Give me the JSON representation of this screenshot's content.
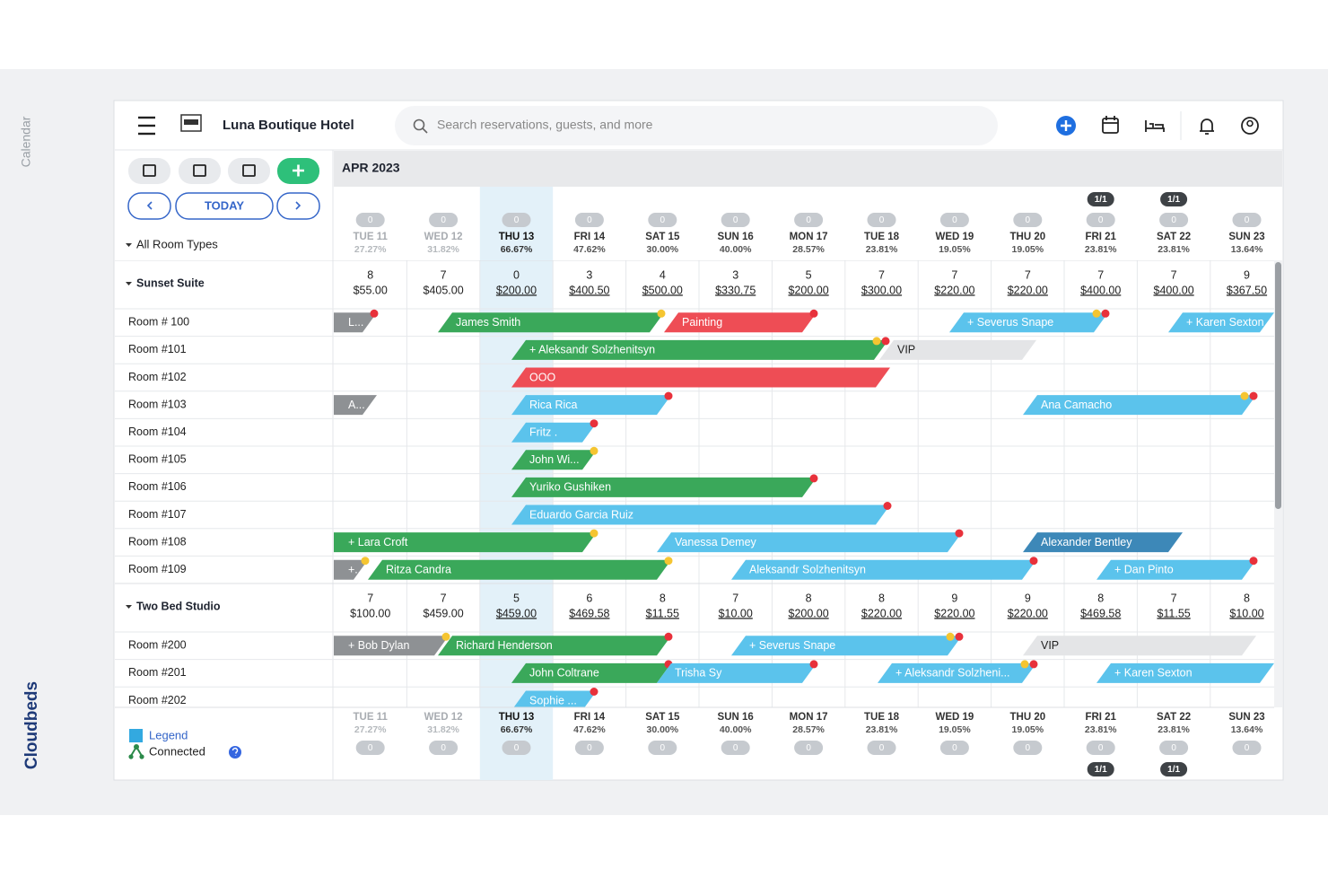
{
  "sidebar": {
    "label": "Calendar",
    "brand": "Cloudbeds"
  },
  "header": {
    "hotel": "Luna Boutique Hotel",
    "search_placeholder": "Search reservations, guests, and more"
  },
  "controls": {
    "today": "TODAY",
    "room_filter": "All Room Types"
  },
  "calendar": {
    "month": "APR 2023",
    "days": [
      {
        "label": "TUE 11",
        "occupancy": "27.27%",
        "badge": 0
      },
      {
        "label": "WED 12",
        "occupancy": "31.82%",
        "badge": 0
      },
      {
        "label": "THU 13",
        "occupancy": "66.67%",
        "badge": 0
      },
      {
        "label": "FRI 14",
        "occupancy": "47.62%",
        "badge": 0
      },
      {
        "label": "SAT 15",
        "occupancy": "30.00%",
        "badge": 0
      },
      {
        "label": "SUN 16",
        "occupancy": "40.00%",
        "badge": 0
      },
      {
        "label": "MON 17",
        "occupancy": "28.57%",
        "badge": 0
      },
      {
        "label": "TUE 18",
        "occupancy": "23.81%",
        "badge": 0
      },
      {
        "label": "WED 19",
        "occupancy": "19.05%",
        "badge": 0
      },
      {
        "label": "THU 20",
        "occupancy": "19.05%",
        "badge": 0
      },
      {
        "label": "FRI 21",
        "occupancy": "23.81%",
        "badge": 0,
        "extra": "1/1"
      },
      {
        "label": "SAT 22",
        "occupancy": "23.81%",
        "badge": 0,
        "extra": "1/1"
      },
      {
        "label": "SUN 23",
        "occupancy": "13.64%",
        "badge": 0
      }
    ]
  },
  "room_types": [
    {
      "name": "Sunset Suite",
      "availability": [
        8,
        7,
        0,
        3,
        4,
        3,
        5,
        7,
        7,
        7,
        7,
        7,
        9
      ],
      "prices": [
        "$55.00",
        "$405.00",
        "$200.00",
        "$400.50",
        "$500.00",
        "$330.75",
        "$200.00",
        "$300.00",
        "$220.00",
        "$220.00",
        "$400.00",
        "$400.00",
        "$367.50"
      ],
      "rooms": [
        {
          "name": "Room # 100",
          "reservations": [
            "L...",
            "James Smith",
            "Painting",
            "+ Severus Snape",
            "+ Karen Sexton"
          ]
        },
        {
          "name": "Room #101",
          "reservations": [
            "+ Aleksandr Solzhenitsyn",
            "VIP"
          ]
        },
        {
          "name": "Room #102",
          "reservations": [
            "OOO"
          ]
        },
        {
          "name": "Room #103",
          "reservations": [
            "A...",
            "Rica Rica",
            "Ana Camacho"
          ]
        },
        {
          "name": "Room #104",
          "reservations": [
            "Fritz ."
          ]
        },
        {
          "name": "Room #105",
          "reservations": [
            "John Wi..."
          ]
        },
        {
          "name": "Room #106",
          "reservations": [
            "Yuriko Gushiken"
          ]
        },
        {
          "name": "Room #107",
          "reservations": [
            "Eduardo Garcia Ruiz"
          ]
        },
        {
          "name": "Room #108",
          "reservations": [
            "+ Lara Croft",
            "Vanessa Demey",
            "Alexander Bentley"
          ]
        },
        {
          "name": "Room #109",
          "reservations": [
            "+...",
            "Ritza Candra",
            "Aleksandr Solzhenitsyn",
            "+ Dan Pinto"
          ]
        }
      ]
    },
    {
      "name": "Two Bed Studio",
      "availability": [
        7,
        7,
        5,
        6,
        8,
        7,
        8,
        8,
        9,
        9,
        8,
        7,
        8
      ],
      "prices": [
        "$100.00",
        "$459.00",
        "$459.00",
        "$469.58",
        "$11.55",
        "$10.00",
        "$200.00",
        "$220.00",
        "$220.00",
        "$220.00",
        "$469.58",
        "$11.55",
        "$10.00"
      ],
      "rooms": [
        {
          "name": "Room #200",
          "reservations": [
            "+ Bob Dylan",
            "Richard Henderson",
            "+ Severus Snape",
            "VIP"
          ]
        },
        {
          "name": "Room #201",
          "reservations": [
            "John Coltrane",
            "Trisha Sy",
            "+ Aleksandr Solzheni...",
            "+ Karen Sexton"
          ]
        },
        {
          "name": "Room #202",
          "reservations": [
            "Sophie ..."
          ]
        }
      ]
    }
  ],
  "legend": {
    "legend": "Legend",
    "connected": "Connected"
  }
}
